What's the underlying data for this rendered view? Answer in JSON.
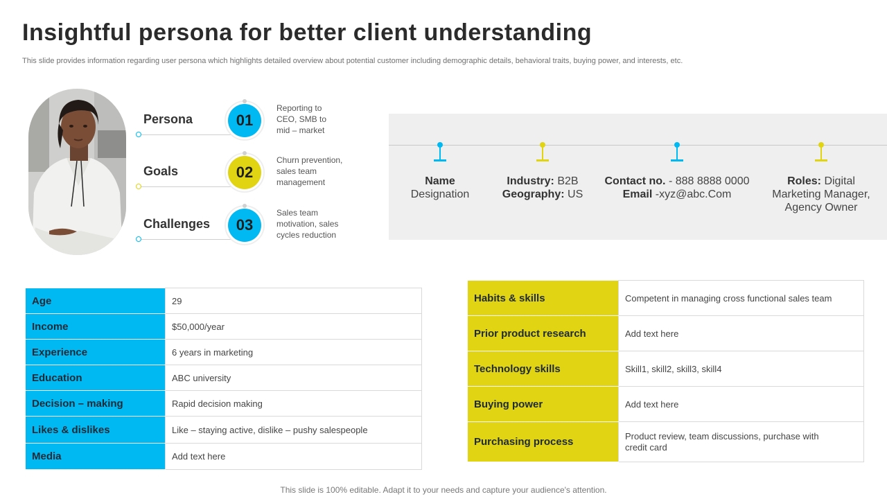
{
  "header": {
    "title": "Insightful persona for better client understanding",
    "subtitle": "This slide provides information regarding user persona which highlights detailed overview about potential customer including demographic details, behavioral traits, buying power, and interests, etc."
  },
  "colors": {
    "blue": "#00b9f2",
    "yellow": "#e0d413"
  },
  "persona_rows": [
    {
      "label": "Persona",
      "number": "01",
      "color": "blue",
      "lines": [
        "Reporting to",
        "CEO, SMB to",
        "mid – market"
      ]
    },
    {
      "label": "Goals",
      "number": "02",
      "color": "yellow",
      "lines": [
        "Churn prevention,",
        "sales team",
        "management"
      ]
    },
    {
      "label": "Challenges",
      "number": "03",
      "color": "blue",
      "lines": [
        "Sales team",
        "motivation, sales",
        "cycles reduction"
      ]
    }
  ],
  "info_panel": [
    {
      "color": "blue",
      "line1_bold": "Name",
      "line1_rest": "",
      "line2_bold": "",
      "line2_rest": "Designation",
      "line3": ""
    },
    {
      "color": "yellow",
      "line1_bold": "Industry:",
      "line1_rest": " B2B",
      "line2_bold": "Geography:",
      "line2_rest": " US",
      "line3": ""
    },
    {
      "color": "blue",
      "line1_bold": "Contact no.",
      "line1_rest": " - 888 8888 0000",
      "line2_bold": "Email",
      "line2_rest": " -xyz@abc.Com",
      "line3": ""
    },
    {
      "color": "yellow",
      "line1_bold": "Roles:",
      "line1_rest": " Digital",
      "line2_bold": "",
      "line2_rest": "Marketing Manager,",
      "line3": "Agency Owner"
    }
  ],
  "left_table": [
    {
      "key": "Age",
      "value": "29"
    },
    {
      "key": "Income",
      "value": "$50,000/year"
    },
    {
      "key": "Experience",
      "value": "6 years in marketing"
    },
    {
      "key": "Education",
      "value": "ABC university"
    },
    {
      "key": "Decision – making",
      "value": "Rapid decision making"
    },
    {
      "key": "Likes & dislikes",
      "value": "Like – staying active, dislike – pushy salespeople"
    },
    {
      "key": "Media",
      "value": "Add text here"
    }
  ],
  "right_table": [
    {
      "key": "Habits & skills",
      "value": "Competent in managing cross functional sales team"
    },
    {
      "key": "Prior product research",
      "value": "Add text here"
    },
    {
      "key": "Technology skills",
      "value": "Skill1, skill2, skill3, skill4"
    },
    {
      "key": "Buying power",
      "value": "Add text here"
    },
    {
      "key": "Purchasing process",
      "value": "Product review,  team discussions, purchase with credit card"
    }
  ],
  "footer": "This slide is 100% editable. Adapt it to your needs and capture your audience's attention."
}
